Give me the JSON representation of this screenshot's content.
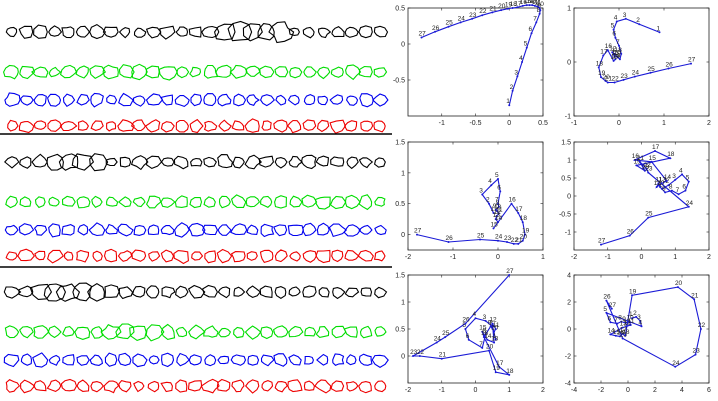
{
  "colors": {
    "row_black": "#000000",
    "row_green": "#00dd00",
    "row_blue": "#0000ee",
    "row_red": "#ee0000",
    "trajectory": "#1a1ad6",
    "axis": "#222222",
    "background": "#ffffff"
  },
  "shape_panel": {
    "groups": [
      {
        "row_colors": [
          "black",
          "green",
          "blue",
          "red"
        ],
        "shapes_per_row": 27
      },
      {
        "row_colors": [
          "black",
          "green",
          "blue",
          "red"
        ],
        "shapes_per_row": 27
      },
      {
        "row_colors": [
          "black",
          "green",
          "blue",
          "red"
        ],
        "shapes_per_row": 27
      }
    ]
  },
  "chart_data": [
    {
      "type": "line",
      "title": "",
      "xlabel": "",
      "ylabel": "",
      "xlim": [
        -1.5,
        0.5
      ],
      "ylim": [
        -1,
        0.5
      ],
      "xticks": [
        -1,
        -0.5,
        0,
        0.5
      ],
      "yticks": [
        -0.5,
        0,
        0.5
      ],
      "grid": false,
      "points": [
        {
          "label": "1",
          "x": 0.0,
          "y": -0.85
        },
        {
          "label": "2",
          "x": 0.05,
          "y": -0.65
        },
        {
          "label": "3",
          "x": 0.12,
          "y": -0.45
        },
        {
          "label": "4",
          "x": 0.19,
          "y": -0.25
        },
        {
          "label": "5",
          "x": 0.26,
          "y": -0.05
        },
        {
          "label": "6",
          "x": 0.33,
          "y": 0.15
        },
        {
          "label": "7",
          "x": 0.4,
          "y": 0.3
        },
        {
          "label": "8",
          "x": 0.45,
          "y": 0.42
        },
        {
          "label": "9",
          "x": 0.46,
          "y": 0.47
        },
        {
          "label": "10",
          "x": 0.45,
          "y": 0.5
        },
        {
          "label": "11",
          "x": 0.42,
          "y": 0.52
        },
        {
          "label": "12",
          "x": 0.38,
          "y": 0.53
        },
        {
          "label": "13",
          "x": 0.34,
          "y": 0.54
        },
        {
          "label": "14",
          "x": 0.3,
          "y": 0.54
        },
        {
          "label": "15",
          "x": 0.26,
          "y": 0.54
        },
        {
          "label": "16",
          "x": 0.2,
          "y": 0.53
        },
        {
          "label": "17",
          "x": 0.12,
          "y": 0.51
        },
        {
          "label": "18",
          "x": 0.05,
          "y": 0.5
        },
        {
          "label": "19",
          "x": -0.02,
          "y": 0.49
        },
        {
          "label": "20",
          "x": -0.12,
          "y": 0.47
        },
        {
          "label": "21",
          "x": -0.25,
          "y": 0.44
        },
        {
          "label": "22",
          "x": -0.4,
          "y": 0.4
        },
        {
          "label": "23",
          "x": -0.55,
          "y": 0.35
        },
        {
          "label": "24",
          "x": -0.72,
          "y": 0.3
        },
        {
          "label": "25",
          "x": -0.9,
          "y": 0.24
        },
        {
          "label": "26",
          "x": -1.1,
          "y": 0.17
        },
        {
          "label": "27",
          "x": -1.3,
          "y": 0.09
        }
      ]
    },
    {
      "type": "line",
      "title": "",
      "xlabel": "",
      "ylabel": "",
      "xlim": [
        -1,
        2
      ],
      "ylim": [
        -1,
        1
      ],
      "xticks": [
        -1,
        0,
        1,
        2
      ],
      "yticks": [
        -1,
        0,
        1
      ],
      "grid": false,
      "points": [
        {
          "label": "1",
          "x": 0.9,
          "y": 0.55
        },
        {
          "label": "2",
          "x": 0.45,
          "y": 0.7
        },
        {
          "label": "3",
          "x": 0.15,
          "y": 0.8
        },
        {
          "label": "4",
          "x": -0.05,
          "y": 0.75
        },
        {
          "label": "5",
          "x": -0.12,
          "y": 0.6
        },
        {
          "label": "6",
          "x": -0.08,
          "y": 0.45
        },
        {
          "label": "7",
          "x": 0.0,
          "y": 0.3
        },
        {
          "label": "8",
          "x": 0.05,
          "y": 0.15
        },
        {
          "label": "9",
          "x": 0.02,
          "y": 0.05
        },
        {
          "label": "10",
          "x": -0.05,
          "y": 0.1
        },
        {
          "label": "11",
          "x": -0.1,
          "y": 0.15
        },
        {
          "label": "12",
          "x": -0.15,
          "y": 0.18
        },
        {
          "label": "13",
          "x": -0.1,
          "y": 0.1
        },
        {
          "label": "14",
          "x": -0.08,
          "y": 0.05
        },
        {
          "label": "15",
          "x": -0.12,
          "y": 0.02
        },
        {
          "label": "16",
          "x": -0.25,
          "y": 0.22
        },
        {
          "label": "17",
          "x": -0.35,
          "y": 0.12
        },
        {
          "label": "18",
          "x": -0.45,
          "y": -0.1
        },
        {
          "label": "19",
          "x": -0.4,
          "y": -0.28
        },
        {
          "label": "20",
          "x": -0.3,
          "y": -0.35
        },
        {
          "label": "21",
          "x": -0.25,
          "y": -0.38
        },
        {
          "label": "22",
          "x": -0.1,
          "y": -0.38
        },
        {
          "label": "23",
          "x": 0.1,
          "y": -0.33
        },
        {
          "label": "24",
          "x": 0.35,
          "y": -0.27
        },
        {
          "label": "25",
          "x": 0.7,
          "y": -0.2
        },
        {
          "label": "26",
          "x": 1.1,
          "y": -0.12
        },
        {
          "label": "27",
          "x": 1.6,
          "y": -0.03
        }
      ]
    },
    {
      "type": "line",
      "title": "",
      "xlabel": "",
      "ylabel": "",
      "xlim": [
        -2,
        1
      ],
      "ylim": [
        -0.25,
        1.5
      ],
      "xticks": [
        -2,
        -1,
        0,
        1
      ],
      "yticks": [
        0,
        0.5,
        1,
        1.5
      ],
      "grid": false,
      "points": [
        {
          "label": "1",
          "x": -0.1,
          "y": 0.35
        },
        {
          "label": "2",
          "x": -0.2,
          "y": 0.5
        },
        {
          "label": "3",
          "x": -0.35,
          "y": 0.65
        },
        {
          "label": "4",
          "x": -0.15,
          "y": 0.8
        },
        {
          "label": "5",
          "x": 0.0,
          "y": 0.9
        },
        {
          "label": "6",
          "x": 0.05,
          "y": 0.7
        },
        {
          "label": "7",
          "x": 0.0,
          "y": 0.5
        },
        {
          "label": "8",
          "x": 0.02,
          "y": 0.45
        },
        {
          "label": "9",
          "x": -0.05,
          "y": 0.4
        },
        {
          "label": "10",
          "x": -0.02,
          "y": 0.38
        },
        {
          "label": "11",
          "x": 0.02,
          "y": 0.34
        },
        {
          "label": "12",
          "x": -0.03,
          "y": 0.3
        },
        {
          "label": "13",
          "x": -0.05,
          "y": 0.25
        },
        {
          "label": "14",
          "x": 0.0,
          "y": 0.2
        },
        {
          "label": "15",
          "x": -0.1,
          "y": 0.1
        },
        {
          "label": "16",
          "x": 0.3,
          "y": 0.5
        },
        {
          "label": "17",
          "x": 0.45,
          "y": 0.35
        },
        {
          "label": "18",
          "x": 0.55,
          "y": 0.2
        },
        {
          "label": "19",
          "x": 0.6,
          "y": 0.0
        },
        {
          "label": "20",
          "x": 0.55,
          "y": -0.1
        },
        {
          "label": "21",
          "x": 0.45,
          "y": -0.15
        },
        {
          "label": "22",
          "x": 0.35,
          "y": -0.15
        },
        {
          "label": "23",
          "x": 0.2,
          "y": -0.12
        },
        {
          "label": "24",
          "x": 0.0,
          "y": -0.1
        },
        {
          "label": "25",
          "x": -0.4,
          "y": -0.08
        },
        {
          "label": "26",
          "x": -1.1,
          "y": -0.12
        },
        {
          "label": "27",
          "x": -1.8,
          "y": 0.0
        }
      ]
    },
    {
      "type": "line",
      "title": "",
      "xlabel": "",
      "ylabel": "",
      "xlim": [
        -2,
        2
      ],
      "ylim": [
        -1.5,
        1.5
      ],
      "xticks": [
        -2,
        -1,
        0,
        1,
        2
      ],
      "yticks": [
        -1,
        -0.5,
        0,
        0.5,
        1,
        1.5
      ],
      "grid": false,
      "points": [
        {
          "label": "1",
          "x": 0.6,
          "y": 0.2
        },
        {
          "label": "2",
          "x": 0.8,
          "y": 0.3
        },
        {
          "label": "3",
          "x": 1.0,
          "y": 0.45
        },
        {
          "label": "4",
          "x": 1.2,
          "y": 0.6
        },
        {
          "label": "5",
          "x": 1.4,
          "y": 0.4
        },
        {
          "label": "6",
          "x": 1.3,
          "y": 0.15
        },
        {
          "label": "7",
          "x": 1.1,
          "y": 0.05
        },
        {
          "label": "8",
          "x": 0.9,
          "y": 0.15
        },
        {
          "label": "9",
          "x": 0.7,
          "y": 0.1
        },
        {
          "label": "10",
          "x": 0.55,
          "y": 0.25
        },
        {
          "label": "11",
          "x": 0.5,
          "y": 0.35
        },
        {
          "label": "12",
          "x": 0.45,
          "y": 0.25
        },
        {
          "label": "13",
          "x": 0.6,
          "y": 0.35
        },
        {
          "label": "14",
          "x": 0.75,
          "y": 0.42
        },
        {
          "label": "15",
          "x": 0.3,
          "y": 0.95
        },
        {
          "label": "16",
          "x": -0.2,
          "y": 1.0
        },
        {
          "label": "17",
          "x": 0.4,
          "y": 1.25
        },
        {
          "label": "18",
          "x": 0.85,
          "y": 1.05
        },
        {
          "label": "19",
          "x": -0.15,
          "y": 0.85
        },
        {
          "label": "20",
          "x": 0.1,
          "y": 0.7
        },
        {
          "label": "21",
          "x": -0.05,
          "y": 0.95
        },
        {
          "label": "22",
          "x": 0.15,
          "y": 0.75
        },
        {
          "label": "23",
          "x": 0.2,
          "y": 0.65
        },
        {
          "label": "24",
          "x": 1.4,
          "y": -0.3
        },
        {
          "label": "25",
          "x": 0.2,
          "y": -0.6
        },
        {
          "label": "26",
          "x": -0.35,
          "y": -1.1
        },
        {
          "label": "27",
          "x": -1.2,
          "y": -1.35
        }
      ]
    },
    {
      "type": "line",
      "title": "",
      "xlabel": "",
      "ylabel": "",
      "xlim": [
        -2,
        2
      ],
      "ylim": [
        -0.5,
        1.5
      ],
      "xticks": [
        -2,
        -1,
        0,
        1,
        2
      ],
      "yticks": [
        0,
        0.5,
        1,
        1.5
      ],
      "grid": false,
      "points": [
        {
          "label": "1",
          "x": 0.6,
          "y": 0.3
        },
        {
          "label": "2",
          "x": 0.5,
          "y": 0.55
        },
        {
          "label": "3",
          "x": 0.3,
          "y": 0.65
        },
        {
          "label": "4",
          "x": 0.0,
          "y": 0.7
        },
        {
          "label": "5",
          "x": -0.3,
          "y": 0.5
        },
        {
          "label": "6",
          "x": -0.2,
          "y": 0.3
        },
        {
          "label": "7",
          "x": 0.2,
          "y": 0.15
        },
        {
          "label": "8",
          "x": 0.3,
          "y": 0.4
        },
        {
          "label": "9",
          "x": 0.45,
          "y": 0.55
        },
        {
          "label": "10",
          "x": 0.55,
          "y": 0.45
        },
        {
          "label": "11",
          "x": 0.6,
          "y": 0.5
        },
        {
          "label": "12",
          "x": 0.5,
          "y": 0.6
        },
        {
          "label": "13",
          "x": 0.55,
          "y": 0.25
        },
        {
          "label": "14",
          "x": 0.35,
          "y": 0.3
        },
        {
          "label": "15",
          "x": 0.2,
          "y": 0.45
        },
        {
          "label": "16",
          "x": 0.25,
          "y": 0.35
        },
        {
          "label": "17",
          "x": 0.7,
          "y": -0.2
        },
        {
          "label": "18",
          "x": 1.0,
          "y": -0.35
        },
        {
          "label": "19",
          "x": 0.6,
          "y": -0.3
        },
        {
          "label": "20",
          "x": 0.4,
          "y": 0.1
        },
        {
          "label": "21",
          "x": -1.0,
          "y": -0.05
        },
        {
          "label": "22",
          "x": -1.65,
          "y": 0.0
        },
        {
          "label": "23",
          "x": -1.85,
          "y": 0.0
        },
        {
          "label": "24",
          "x": -1.15,
          "y": 0.25
        },
        {
          "label": "25",
          "x": -0.9,
          "y": 0.35
        },
        {
          "label": "26",
          "x": -0.3,
          "y": 0.6
        },
        {
          "label": "27",
          "x": 1.0,
          "y": 1.5
        }
      ]
    },
    {
      "type": "line",
      "title": "",
      "xlabel": "",
      "ylabel": "",
      "xlim": [
        -4,
        6
      ],
      "ylim": [
        -4,
        4
      ],
      "xticks": [
        -4,
        -2,
        0,
        2,
        4,
        6
      ],
      "yticks": [
        -4,
        -2,
        0,
        2,
        4
      ],
      "grid": false,
      "points": [
        {
          "label": "1",
          "x": 0.3,
          "y": 0.8
        },
        {
          "label": "2",
          "x": 0.6,
          "y": 0.9
        },
        {
          "label": "3",
          "x": 0.9,
          "y": 0.6
        },
        {
          "label": "4",
          "x": 1.0,
          "y": 0.2
        },
        {
          "label": "5",
          "x": -1.6,
          "y": 1.2
        },
        {
          "label": "6",
          "x": -1.3,
          "y": 0.5
        },
        {
          "label": "7",
          "x": -0.8,
          "y": 0.4
        },
        {
          "label": "8",
          "x": -0.5,
          "y": 0.55
        },
        {
          "label": "9",
          "x": -0.2,
          "y": 0.45
        },
        {
          "label": "10",
          "x": 0.1,
          "y": 0.55
        },
        {
          "label": "11",
          "x": 0.2,
          "y": 0.3
        },
        {
          "label": "12",
          "x": -0.1,
          "y": 0.2
        },
        {
          "label": "13",
          "x": -0.4,
          "y": 0.1
        },
        {
          "label": "14",
          "x": -1.3,
          "y": -0.4
        },
        {
          "label": "15",
          "x": -0.9,
          "y": -0.5
        },
        {
          "label": "16",
          "x": -0.6,
          "y": -0.55
        },
        {
          "label": "17",
          "x": -0.4,
          "y": -0.35
        },
        {
          "label": "18",
          "x": -0.2,
          "y": -0.5
        },
        {
          "label": "19",
          "x": 0.3,
          "y": 2.5
        },
        {
          "label": "20",
          "x": 3.7,
          "y": 3.1
        },
        {
          "label": "21",
          "x": 4.9,
          "y": 2.2
        },
        {
          "label": "22",
          "x": 5.4,
          "y": 0.0
        },
        {
          "label": "23",
          "x": 5.0,
          "y": -1.9
        },
        {
          "label": "24",
          "x": 3.5,
          "y": -2.8
        },
        {
          "label": "25",
          "x": -0.4,
          "y": -0.7
        },
        {
          "label": "26",
          "x": -1.6,
          "y": 2.1
        },
        {
          "label": "27",
          "x": -1.2,
          "y": 1.5
        }
      ]
    }
  ]
}
